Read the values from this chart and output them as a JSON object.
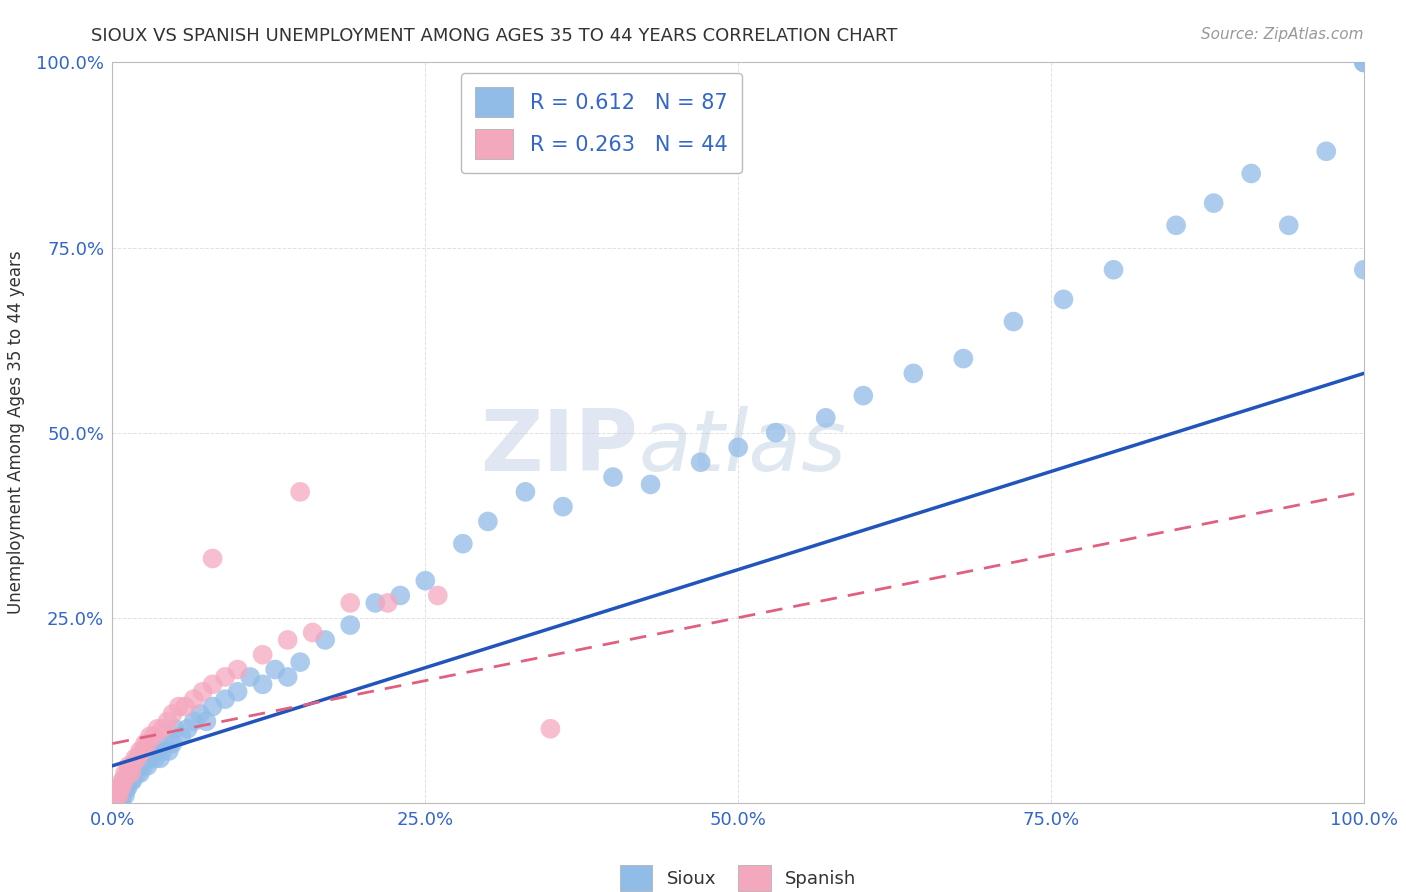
{
  "title": "SIOUX VS SPANISH UNEMPLOYMENT AMONG AGES 35 TO 44 YEARS CORRELATION CHART",
  "source": "Source: ZipAtlas.com",
  "ylabel": "Unemployment Among Ages 35 to 44 years",
  "sioux_R": 0.612,
  "sioux_N": 87,
  "spanish_R": 0.263,
  "spanish_N": 44,
  "sioux_color": "#92bce8",
  "spanish_color": "#f4a8be",
  "sioux_line_color": "#2255bb",
  "spanish_line_color": "#e06080",
  "watermark_color": "#dde5f0",
  "background_color": "#ffffff",
  "grid_color": "#cccccc",
  "label_color": "#3366cc",
  "text_color": "#333333",
  "source_color": "#999999",
  "sioux_x": [
    0.0,
    0.001,
    0.002,
    0.003,
    0.003,
    0.004,
    0.004,
    0.005,
    0.005,
    0.006,
    0.006,
    0.007,
    0.007,
    0.008,
    0.008,
    0.009,
    0.009,
    0.01,
    0.01,
    0.011,
    0.012,
    0.013,
    0.014,
    0.015,
    0.015,
    0.016,
    0.017,
    0.018,
    0.02,
    0.021,
    0.022,
    0.024,
    0.025,
    0.027,
    0.028,
    0.03,
    0.032,
    0.034,
    0.036,
    0.038,
    0.04,
    0.042,
    0.045,
    0.048,
    0.05,
    0.055,
    0.06,
    0.065,
    0.07,
    0.075,
    0.08,
    0.09,
    0.1,
    0.11,
    0.12,
    0.13,
    0.14,
    0.15,
    0.17,
    0.19,
    0.21,
    0.23,
    0.25,
    0.28,
    0.3,
    0.33,
    0.36,
    0.4,
    0.43,
    0.47,
    0.5,
    0.53,
    0.57,
    0.6,
    0.64,
    0.68,
    0.72,
    0.76,
    0.8,
    0.85,
    0.88,
    0.91,
    0.94,
    0.97,
    1.0,
    1.0,
    1.0
  ],
  "sioux_y": [
    0.0,
    0.0,
    0.0,
    0.0,
    0.01,
    0.01,
    0.0,
    0.0,
    0.01,
    0.01,
    0.02,
    0.0,
    0.01,
    0.02,
    0.01,
    0.02,
    0.03,
    0.01,
    0.03,
    0.02,
    0.02,
    0.03,
    0.04,
    0.03,
    0.04,
    0.03,
    0.04,
    0.05,
    0.04,
    0.05,
    0.04,
    0.06,
    0.05,
    0.06,
    0.05,
    0.06,
    0.07,
    0.06,
    0.07,
    0.06,
    0.07,
    0.08,
    0.07,
    0.08,
    0.1,
    0.09,
    0.1,
    0.11,
    0.12,
    0.11,
    0.13,
    0.14,
    0.15,
    0.17,
    0.16,
    0.18,
    0.17,
    0.19,
    0.22,
    0.24,
    0.27,
    0.28,
    0.3,
    0.35,
    0.38,
    0.42,
    0.4,
    0.44,
    0.43,
    0.46,
    0.48,
    0.5,
    0.52,
    0.55,
    0.58,
    0.6,
    0.65,
    0.68,
    0.72,
    0.78,
    0.81,
    0.85,
    0.78,
    0.88,
    0.72,
    1.0,
    1.0
  ],
  "spanish_x": [
    0.0,
    0.001,
    0.002,
    0.003,
    0.004,
    0.005,
    0.005,
    0.006,
    0.007,
    0.008,
    0.009,
    0.01,
    0.012,
    0.013,
    0.015,
    0.016,
    0.018,
    0.02,
    0.022,
    0.024,
    0.026,
    0.028,
    0.03,
    0.033,
    0.036,
    0.04,
    0.044,
    0.048,
    0.053,
    0.058,
    0.065,
    0.072,
    0.08,
    0.09,
    0.1,
    0.12,
    0.14,
    0.16,
    0.19,
    0.22,
    0.26,
    0.35,
    0.08,
    0.15
  ],
  "spanish_y": [
    0.0,
    0.0,
    0.01,
    0.01,
    0.01,
    0.02,
    0.01,
    0.02,
    0.02,
    0.03,
    0.03,
    0.04,
    0.04,
    0.05,
    0.04,
    0.05,
    0.06,
    0.06,
    0.07,
    0.07,
    0.08,
    0.08,
    0.09,
    0.09,
    0.1,
    0.1,
    0.11,
    0.12,
    0.13,
    0.13,
    0.14,
    0.15,
    0.16,
    0.17,
    0.18,
    0.2,
    0.22,
    0.23,
    0.27,
    0.27,
    0.28,
    0.1,
    0.33,
    0.42
  ],
  "sioux_line_x0": 0.0,
  "sioux_line_y0": 0.05,
  "sioux_line_x1": 1.0,
  "sioux_line_y1": 0.58,
  "spanish_line_x0": 0.0,
  "spanish_line_y0": 0.08,
  "spanish_line_x1": 1.0,
  "spanish_line_y1": 0.42,
  "xlim": [
    0.0,
    1.0
  ],
  "ylim": [
    0.0,
    1.0
  ],
  "xtick_labels": [
    "0.0%",
    "25.0%",
    "50.0%",
    "75.0%",
    "100.0%"
  ],
  "xtick_positions": [
    0.0,
    0.25,
    0.5,
    0.75,
    1.0
  ],
  "ytick_labels": [
    "25.0%",
    "50.0%",
    "75.0%",
    "100.0%"
  ],
  "ytick_positions": [
    0.25,
    0.5,
    0.75,
    1.0
  ]
}
